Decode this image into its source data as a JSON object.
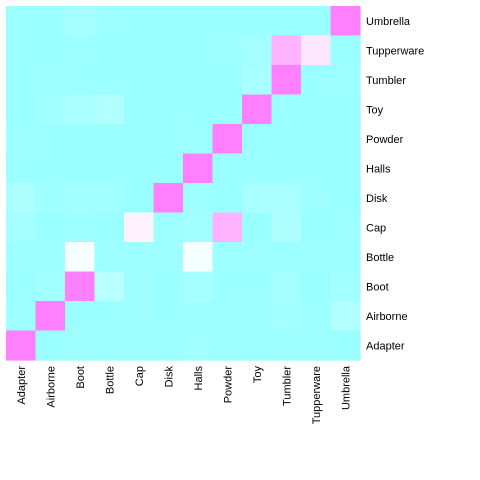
{
  "chart_data": {
    "type": "heatmap",
    "title": "",
    "xlabel": "",
    "ylabel": "",
    "x_categories": [
      "Adapter",
      "Airborne",
      "Boot",
      "Bottle",
      "Cap",
      "Disk",
      "Halls",
      "Powder",
      "Toy",
      "Tumbler",
      "Tupperware",
      "Umbrella"
    ],
    "y_categories": [
      "Umbrella",
      "Tupperware",
      "Tumbler",
      "Toy",
      "Powder",
      "Halls",
      "Disk",
      "Cap",
      "Bottle",
      "Boot",
      "Airborne",
      "Adapter"
    ],
    "values": [
      [
        0.01,
        0.01,
        0.06,
        0.03,
        0.01,
        0.01,
        0.01,
        0.01,
        0.01,
        0.01,
        0.01,
        1.0
      ],
      [
        0.01,
        0.01,
        0.02,
        0.01,
        0.01,
        0.01,
        0.01,
        0.02,
        0.05,
        0.8,
        0.6,
        0.01
      ],
      [
        0.01,
        0.03,
        0.01,
        0.01,
        0.01,
        0.01,
        0.01,
        0.01,
        0.08,
        1.0,
        0.01,
        0.02
      ],
      [
        0.01,
        0.04,
        0.08,
        0.12,
        0.01,
        0.01,
        0.01,
        0.01,
        1.0,
        0.01,
        0.01,
        0.01
      ],
      [
        0.02,
        0.01,
        0.01,
        0.01,
        0.01,
        0.01,
        0.02,
        1.0,
        0.01,
        0.01,
        0.01,
        0.01
      ],
      [
        0.01,
        0.01,
        0.01,
        0.01,
        0.01,
        0.01,
        1.0,
        0.01,
        0.01,
        0.01,
        0.01,
        0.01
      ],
      [
        0.1,
        0.03,
        0.05,
        0.04,
        0.0,
        1.0,
        0.03,
        0.0,
        0.08,
        0.08,
        0.02,
        0.0
      ],
      [
        0.06,
        0.0,
        0.02,
        0.0,
        0.55,
        0.02,
        0.05,
        0.8,
        0.0,
        0.1,
        0.0,
        0.02
      ],
      [
        0.02,
        0.02,
        0.45,
        0.02,
        0.02,
        0.02,
        0.45,
        0.02,
        0.02,
        0.02,
        0.02,
        0.02
      ],
      [
        0.01,
        0.05,
        1.0,
        0.15,
        0.02,
        0.01,
        0.06,
        0.01,
        0.01,
        0.06,
        0.0,
        0.04
      ],
      [
        0.02,
        1.0,
        0.01,
        0.01,
        0.02,
        0.01,
        0.02,
        0.02,
        0.02,
        0.05,
        0.02,
        0.12
      ],
      [
        1.0,
        0.01,
        0.03,
        0.02,
        0.02,
        0.02,
        0.04,
        0.02,
        0.02,
        0.02,
        0.02,
        0.01
      ]
    ],
    "color_low": "#99ffff",
    "color_high": "#ff80ff",
    "legend": "none",
    "grid": false
  }
}
